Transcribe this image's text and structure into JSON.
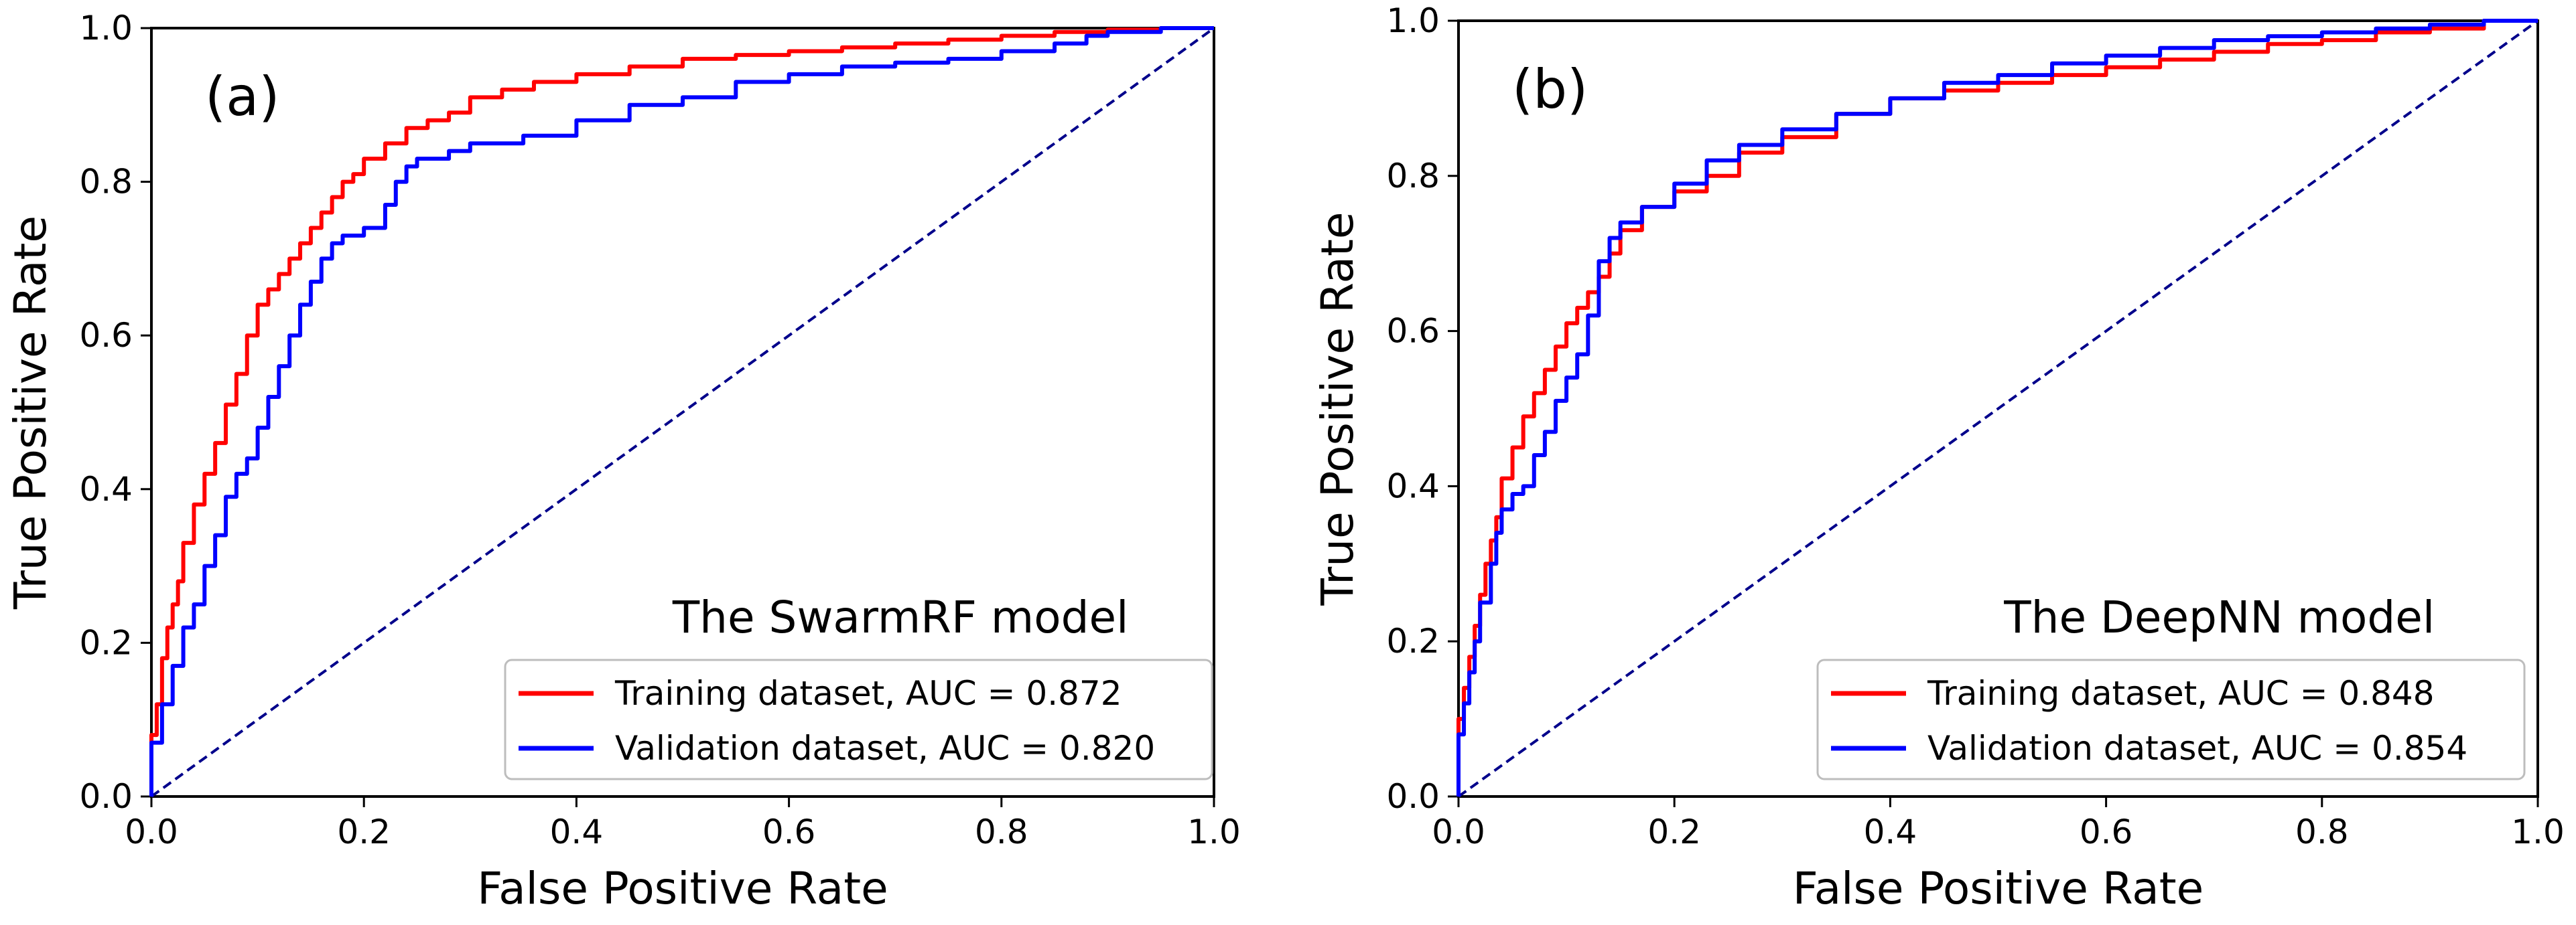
{
  "chart_data": [
    {
      "type": "line",
      "panel_label": "(a)",
      "model_label": "The SwarmRF model",
      "xlabel": "False Positive Rate",
      "ylabel": "True Positive Rate",
      "xlim": [
        0,
        1
      ],
      "ylim": [
        0,
        1
      ],
      "xticks": [
        "0.0",
        "0.2",
        "0.4",
        "0.6",
        "0.8",
        "1.0"
      ],
      "yticks": [
        "0.0",
        "0.2",
        "0.4",
        "0.6",
        "0.8",
        "1.0"
      ],
      "grid": false,
      "legend_position": "lower-right",
      "reference_line": {
        "color": "#00008B",
        "style": "dashed",
        "points": [
          [
            0,
            0
          ],
          [
            1,
            1
          ]
        ]
      },
      "series": [
        {
          "name": "Training dataset, AUC = 0.872",
          "color": "#FF0000",
          "points": [
            [
              0,
              0
            ],
            [
              0,
              0.05
            ],
            [
              0.005,
              0.08
            ],
            [
              0.01,
              0.12
            ],
            [
              0.015,
              0.18
            ],
            [
              0.02,
              0.22
            ],
            [
              0.025,
              0.25
            ],
            [
              0.03,
              0.28
            ],
            [
              0.04,
              0.33
            ],
            [
              0.05,
              0.38
            ],
            [
              0.06,
              0.42
            ],
            [
              0.07,
              0.46
            ],
            [
              0.08,
              0.51
            ],
            [
              0.09,
              0.55
            ],
            [
              0.1,
              0.6
            ],
            [
              0.11,
              0.64
            ],
            [
              0.12,
              0.66
            ],
            [
              0.13,
              0.68
            ],
            [
              0.14,
              0.7
            ],
            [
              0.15,
              0.72
            ],
            [
              0.16,
              0.74
            ],
            [
              0.17,
              0.76
            ],
            [
              0.18,
              0.78
            ],
            [
              0.19,
              0.8
            ],
            [
              0.2,
              0.81
            ],
            [
              0.22,
              0.83
            ],
            [
              0.24,
              0.85
            ],
            [
              0.26,
              0.87
            ],
            [
              0.28,
              0.88
            ],
            [
              0.3,
              0.89
            ],
            [
              0.33,
              0.91
            ],
            [
              0.36,
              0.92
            ],
            [
              0.4,
              0.93
            ],
            [
              0.45,
              0.94
            ],
            [
              0.5,
              0.95
            ],
            [
              0.55,
              0.96
            ],
            [
              0.6,
              0.965
            ],
            [
              0.65,
              0.97
            ],
            [
              0.7,
              0.975
            ],
            [
              0.75,
              0.98
            ],
            [
              0.8,
              0.985
            ],
            [
              0.85,
              0.99
            ],
            [
              0.9,
              0.995
            ],
            [
              0.95,
              0.998
            ],
            [
              1,
              1
            ]
          ]
        },
        {
          "name": "Validation dataset, AUC = 0.820",
          "color": "#0000FF",
          "points": [
            [
              0,
              0
            ],
            [
              0,
              0.05
            ],
            [
              0.01,
              0.07
            ],
            [
              0.02,
              0.12
            ],
            [
              0.03,
              0.17
            ],
            [
              0.04,
              0.22
            ],
            [
              0.05,
              0.25
            ],
            [
              0.06,
              0.3
            ],
            [
              0.07,
              0.34
            ],
            [
              0.08,
              0.39
            ],
            [
              0.09,
              0.42
            ],
            [
              0.1,
              0.44
            ],
            [
              0.11,
              0.48
            ],
            [
              0.12,
              0.52
            ],
            [
              0.13,
              0.56
            ],
            [
              0.14,
              0.6
            ],
            [
              0.15,
              0.64
            ],
            [
              0.16,
              0.67
            ],
            [
              0.17,
              0.7
            ],
            [
              0.18,
              0.72
            ],
            [
              0.2,
              0.73
            ],
            [
              0.22,
              0.74
            ],
            [
              0.23,
              0.77
            ],
            [
              0.24,
              0.8
            ],
            [
              0.25,
              0.82
            ],
            [
              0.28,
              0.83
            ],
            [
              0.3,
              0.84
            ],
            [
              0.35,
              0.85
            ],
            [
              0.4,
              0.86
            ],
            [
              0.45,
              0.88
            ],
            [
              0.5,
              0.9
            ],
            [
              0.55,
              0.91
            ],
            [
              0.6,
              0.93
            ],
            [
              0.65,
              0.94
            ],
            [
              0.7,
              0.95
            ],
            [
              0.75,
              0.955
            ],
            [
              0.8,
              0.96
            ],
            [
              0.85,
              0.97
            ],
            [
              0.88,
              0.98
            ],
            [
              0.9,
              0.99
            ],
            [
              0.95,
              0.995
            ],
            [
              1,
              1
            ]
          ]
        }
      ]
    },
    {
      "type": "line",
      "panel_label": "(b)",
      "model_label": "The DeepNN model",
      "xlabel": "False Positive Rate",
      "ylabel": "True Positive Rate",
      "xlim": [
        0,
        1
      ],
      "ylim": [
        0,
        1
      ],
      "xticks": [
        "0.0",
        "0.2",
        "0.4",
        "0.6",
        "0.8",
        "1.0"
      ],
      "yticks": [
        "0.0",
        "0.2",
        "0.4",
        "0.6",
        "0.8",
        "1.0"
      ],
      "grid": false,
      "legend_position": "lower-right",
      "reference_line": {
        "color": "#00008B",
        "style": "dashed",
        "points": [
          [
            0,
            0
          ],
          [
            1,
            1
          ]
        ]
      },
      "series": [
        {
          "name": "Training dataset, AUC = 0.848",
          "color": "#FF0000",
          "points": [
            [
              0,
              0
            ],
            [
              0,
              0.06
            ],
            [
              0.005,
              0.1
            ],
            [
              0.01,
              0.14
            ],
            [
              0.015,
              0.18
            ],
            [
              0.02,
              0.22
            ],
            [
              0.025,
              0.26
            ],
            [
              0.03,
              0.3
            ],
            [
              0.035,
              0.33
            ],
            [
              0.04,
              0.36
            ],
            [
              0.05,
              0.41
            ],
            [
              0.06,
              0.45
            ],
            [
              0.07,
              0.49
            ],
            [
              0.08,
              0.52
            ],
            [
              0.09,
              0.55
            ],
            [
              0.1,
              0.58
            ],
            [
              0.11,
              0.61
            ],
            [
              0.12,
              0.63
            ],
            [
              0.13,
              0.65
            ],
            [
              0.14,
              0.67
            ],
            [
              0.15,
              0.7
            ],
            [
              0.17,
              0.73
            ],
            [
              0.2,
              0.76
            ],
            [
              0.23,
              0.78
            ],
            [
              0.26,
              0.8
            ],
            [
              0.3,
              0.83
            ],
            [
              0.35,
              0.85
            ],
            [
              0.4,
              0.88
            ],
            [
              0.45,
              0.9
            ],
            [
              0.5,
              0.91
            ],
            [
              0.55,
              0.92
            ],
            [
              0.6,
              0.93
            ],
            [
              0.65,
              0.94
            ],
            [
              0.7,
              0.95
            ],
            [
              0.75,
              0.96
            ],
            [
              0.8,
              0.97
            ],
            [
              0.85,
              0.975
            ],
            [
              0.9,
              0.985
            ],
            [
              0.95,
              0.99
            ],
            [
              1,
              1
            ]
          ]
        },
        {
          "name": "Validation dataset, AUC = 0.854",
          "color": "#0000FF",
          "points": [
            [
              0,
              0
            ],
            [
              0,
              0.04
            ],
            [
              0.005,
              0.08
            ],
            [
              0.01,
              0.12
            ],
            [
              0.015,
              0.16
            ],
            [
              0.02,
              0.2
            ],
            [
              0.03,
              0.25
            ],
            [
              0.035,
              0.3
            ],
            [
              0.04,
              0.34
            ],
            [
              0.05,
              0.37
            ],
            [
              0.06,
              0.39
            ],
            [
              0.07,
              0.4
            ],
            [
              0.08,
              0.44
            ],
            [
              0.09,
              0.47
            ],
            [
              0.1,
              0.51
            ],
            [
              0.11,
              0.54
            ],
            [
              0.12,
              0.57
            ],
            [
              0.13,
              0.62
            ],
            [
              0.14,
              0.69
            ],
            [
              0.15,
              0.72
            ],
            [
              0.17,
              0.74
            ],
            [
              0.2,
              0.76
            ],
            [
              0.23,
              0.79
            ],
            [
              0.26,
              0.82
            ],
            [
              0.3,
              0.84
            ],
            [
              0.35,
              0.86
            ],
            [
              0.4,
              0.88
            ],
            [
              0.45,
              0.9
            ],
            [
              0.5,
              0.92
            ],
            [
              0.55,
              0.93
            ],
            [
              0.6,
              0.945
            ],
            [
              0.65,
              0.955
            ],
            [
              0.7,
              0.965
            ],
            [
              0.75,
              0.975
            ],
            [
              0.8,
              0.98
            ],
            [
              0.85,
              0.985
            ],
            [
              0.9,
              0.99
            ],
            [
              0.95,
              0.995
            ],
            [
              1,
              1
            ]
          ]
        }
      ]
    }
  ]
}
